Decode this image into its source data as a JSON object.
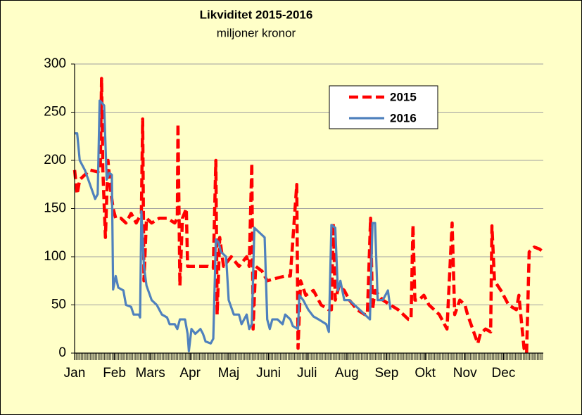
{
  "chart_data": {
    "type": "line",
    "title": "Likviditet 2015-2016",
    "subtitle": "miljoner kronor",
    "xlim": [
      0,
      365
    ],
    "xticks": [
      {
        "value": 0,
        "label": "Jan"
      },
      {
        "value": 31,
        "label": "Feb"
      },
      {
        "value": 59,
        "label": "Mars"
      },
      {
        "value": 90,
        "label": "Apr"
      },
      {
        "value": 120,
        "label": "Maj"
      },
      {
        "value": 151,
        "label": "Juni"
      },
      {
        "value": 181,
        "label": "Juli"
      },
      {
        "value": 212,
        "label": "Aug"
      },
      {
        "value": 243,
        "label": "Sep"
      },
      {
        "value": 273,
        "label": "Okt"
      },
      {
        "value": 304,
        "label": "Nov"
      },
      {
        "value": 334,
        "label": "Dec"
      }
    ],
    "ylim": [
      0,
      300
    ],
    "yticks": [
      0,
      50,
      100,
      150,
      200,
      250,
      300
    ],
    "grid": true,
    "legend": "top-right",
    "series": [
      {
        "name": "2015",
        "color": "#ff0000",
        "dashed": true,
        "x": [
          0,
          2,
          4,
          8,
          12,
          18,
          20,
          21,
          22,
          24,
          26,
          28,
          30,
          32,
          36,
          40,
          44,
          48,
          50,
          52,
          53,
          54,
          56,
          60,
          66,
          72,
          78,
          80,
          80.5,
          82,
          84,
          87,
          88,
          92,
          98,
          104,
          108,
          110,
          111,
          113,
          116,
          122,
          128,
          134,
          136,
          138,
          139,
          141,
          146,
          150,
          158,
          164,
          168,
          173,
          174,
          176,
          180,
          186,
          192,
          198,
          200,
          201.5,
          203,
          206,
          210,
          214,
          220,
          226,
          228,
          230.5,
          232,
          234,
          240,
          246,
          252,
          256,
          260,
          262,
          263.5,
          265,
          268,
          272,
          276,
          280,
          284,
          288,
          290,
          294,
          296,
          300,
          304,
          306,
          310,
          314,
          316,
          320,
          324,
          325,
          327,
          332,
          338,
          344,
          346,
          350,
          352,
          354,
          358,
          362,
          365
        ],
        "values": [
          190,
          165,
          180,
          185,
          190,
          188,
          190,
          285,
          190,
          120,
          200,
          170,
          150,
          140,
          140,
          135,
          145,
          135,
          140,
          145,
          243,
          75,
          140,
          135,
          140,
          140,
          135,
          140,
          238,
          70,
          140,
          150,
          90,
          90,
          90,
          90,
          88,
          200,
          40,
          120,
          90,
          100,
          90,
          100,
          90,
          197,
          25,
          90,
          85,
          75,
          78,
          80,
          80,
          175,
          5,
          75,
          60,
          65,
          50,
          45,
          45,
          135,
          55,
          70,
          65,
          55,
          45,
          40,
          40,
          140,
          45,
          65,
          55,
          50,
          45,
          40,
          35,
          35,
          133,
          55,
          55,
          60,
          50,
          45,
          40,
          30,
          25,
          135,
          40,
          55,
          50,
          40,
          25,
          10,
          20,
          25,
          22,
          132,
          75,
          65,
          50,
          45,
          60,
          5,
          0,
          105,
          110,
          108,
          105
        ]
      },
      {
        "name": "2016",
        "color": "#4f81bd",
        "dashed": false,
        "x": [
          0,
          2,
          4,
          8,
          12,
          16,
          18,
          19.5,
          21,
          23,
          25,
          27,
          29,
          30,
          32,
          34,
          38,
          40,
          44,
          46,
          50,
          51,
          52,
          54,
          56,
          60,
          64,
          68,
          72,
          74,
          78,
          80,
          82,
          86,
          88,
          89,
          91,
          94,
          98,
          100,
          102,
          106,
          108,
          110,
          112,
          114,
          118,
          120,
          124,
          128,
          130,
          134,
          136,
          138,
          140,
          144,
          148,
          150,
          152,
          154,
          158,
          162,
          164,
          168,
          170,
          174,
          175,
          178,
          182,
          186,
          190,
          196,
          198,
          200,
          203,
          205,
          207,
          210,
          214,
          218,
          222,
          226,
          230,
          232,
          234,
          236,
          240,
          244,
          246
        ],
        "values": [
          228,
          228,
          200,
          190,
          175,
          160,
          165,
          262,
          260,
          257,
          180,
          187,
          185,
          66,
          80,
          68,
          65,
          50,
          48,
          40,
          40,
          37,
          147,
          90,
          70,
          55,
          50,
          40,
          37,
          30,
          30,
          25,
          35,
          35,
          20,
          2,
          25,
          20,
          25,
          20,
          12,
          10,
          15,
          118,
          115,
          105,
          100,
          55,
          40,
          40,
          30,
          40,
          25,
          30,
          130,
          125,
          120,
          35,
          25,
          35,
          35,
          30,
          40,
          35,
          28,
          25,
          60,
          55,
          45,
          38,
          35,
          30,
          22,
          133,
          130,
          65,
          75,
          55,
          55,
          50,
          45,
          40,
          35,
          135,
          135,
          55,
          55,
          65,
          45
        ]
      }
    ]
  }
}
